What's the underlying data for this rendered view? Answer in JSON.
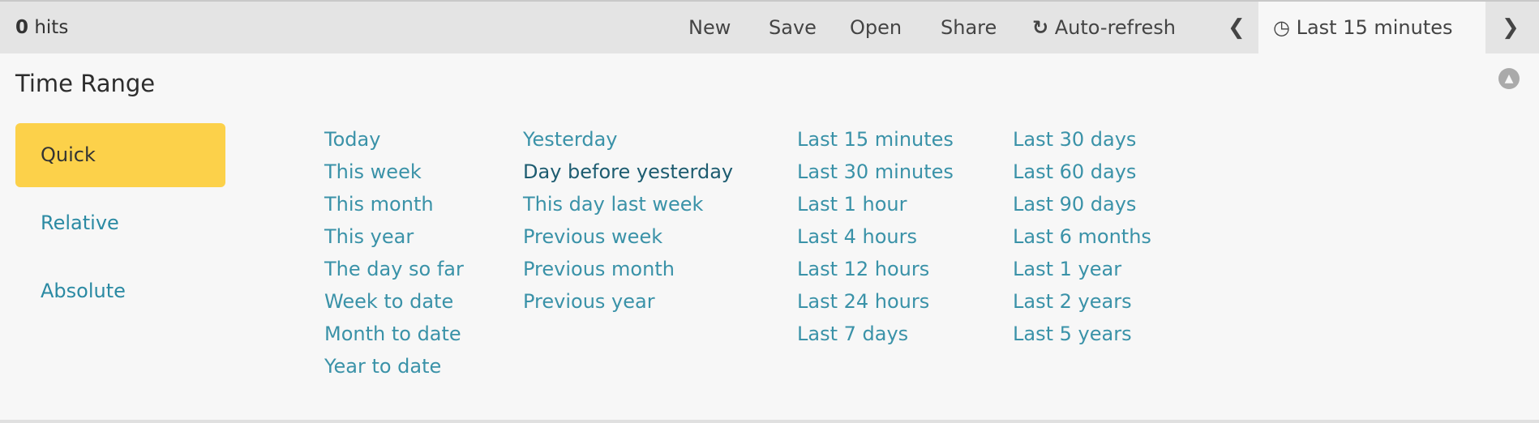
{
  "header": {
    "hits_count": "0",
    "hits_label": "hits",
    "menu": [
      "New",
      "Save",
      "Open",
      "Share"
    ],
    "auto_refresh": "Auto-refresh",
    "time_label": "Last 15 minutes"
  },
  "panel": {
    "title": "Time Range",
    "tabs": [
      "Quick",
      "Relative",
      "Absolute"
    ],
    "active_tab": "Quick",
    "columns": [
      [
        "Today",
        "This week",
        "This month",
        "This year",
        "The day so far",
        "Week to date",
        "Month to date",
        "Year to date"
      ],
      [
        "Yesterday",
        "Day before yesterday",
        "This day last week",
        "Previous week",
        "Previous month",
        "Previous year"
      ],
      [
        "Last 15 minutes",
        "Last 30 minutes",
        "Last 1 hour",
        "Last 4 hours",
        "Last 12 hours",
        "Last 24 hours",
        "Last 7 days"
      ],
      [
        "Last 30 days",
        "Last 60 days",
        "Last 90 days",
        "Last 6 months",
        "Last 1 year",
        "Last 2 years",
        "Last 5 years"
      ]
    ],
    "hovered_item": "Day before yesterday"
  },
  "colors": {
    "accent": "#fcd14a",
    "link": "#3a92a8",
    "link_hover": "#1d5c70",
    "header_bg": "#e4e4e4"
  }
}
